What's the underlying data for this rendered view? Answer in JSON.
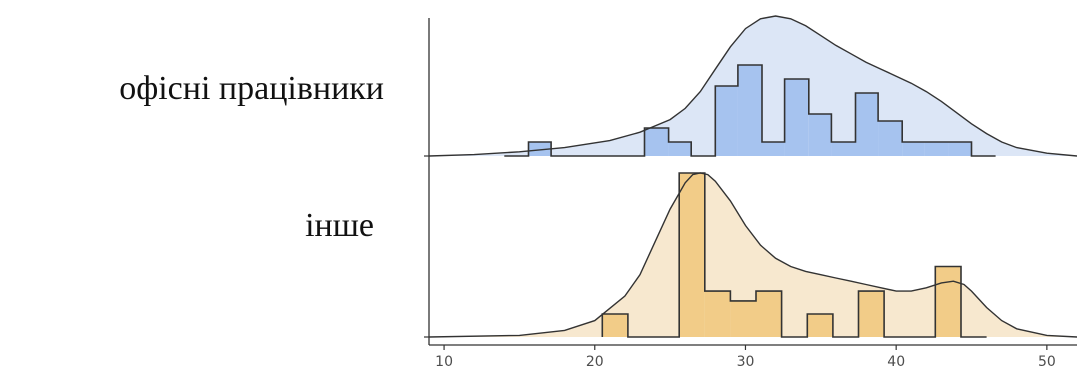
{
  "chart_data": {
    "type": "ridgeline",
    "title": "",
    "xlabel": "",
    "ylabel": "",
    "xlim": [
      9,
      52
    ],
    "x_ticks": [
      10,
      20,
      30,
      40,
      50
    ],
    "grid": false,
    "legend": "none",
    "groups": [
      {
        "name": "офісні працівники",
        "fill_color": "#a6c3ef",
        "density_color": "#dce6f6",
        "line_color": "#333333",
        "density": {
          "x": [
            9,
            12,
            15,
            18,
            21,
            23,
            25,
            26,
            27,
            28,
            29,
            30,
            31,
            32,
            33,
            34,
            35,
            36,
            37,
            38,
            39,
            40,
            41,
            42,
            43,
            44,
            45,
            46,
            47,
            48,
            50,
            52
          ],
          "y": [
            0.0,
            0.01,
            0.03,
            0.06,
            0.11,
            0.17,
            0.26,
            0.34,
            0.46,
            0.62,
            0.78,
            0.91,
            0.98,
            1.0,
            0.98,
            0.93,
            0.86,
            0.79,
            0.73,
            0.67,
            0.62,
            0.57,
            0.52,
            0.46,
            0.39,
            0.31,
            0.23,
            0.16,
            0.1,
            0.06,
            0.02,
            0.0
          ]
        },
        "histogram": {
          "bin_edges": [
            14.0,
            15.6,
            17.1,
            18.7,
            20.2,
            21.8,
            23.3,
            24.9,
            26.4,
            28.0,
            29.5,
            31.1,
            32.6,
            34.2,
            35.7,
            37.3,
            38.8,
            40.4,
            41.9,
            43.5,
            45.0,
            46.6
          ],
          "heights": [
            0,
            0.1,
            0,
            0,
            0,
            0,
            0.2,
            0.1,
            0,
            0.5,
            0.65,
            0.1,
            0.55,
            0.3,
            0.1,
            0.45,
            0.25,
            0.1,
            0.1,
            0.1,
            0
          ]
        }
      },
      {
        "name": "інше",
        "fill_color": "#f2cc88",
        "density_color": "#f7e8cf",
        "line_color": "#333333",
        "density": {
          "x": [
            9,
            15,
            18,
            20,
            22,
            23,
            24,
            25,
            26,
            26.5,
            27,
            27.5,
            28,
            29,
            30,
            31,
            32,
            33,
            34,
            35,
            36,
            37,
            38,
            39,
            40,
            41,
            42,
            43,
            43.8,
            44.5,
            45,
            46,
            47,
            48,
            50,
            52
          ],
          "y": [
            0.0,
            0.01,
            0.04,
            0.1,
            0.25,
            0.38,
            0.58,
            0.78,
            0.94,
            0.99,
            1.0,
            0.99,
            0.95,
            0.83,
            0.68,
            0.56,
            0.48,
            0.43,
            0.4,
            0.38,
            0.36,
            0.34,
            0.32,
            0.3,
            0.28,
            0.28,
            0.3,
            0.33,
            0.34,
            0.32,
            0.28,
            0.18,
            0.1,
            0.05,
            0.01,
            0.0
          ]
        },
        "histogram": {
          "bin_edges": [
            20.5,
            22.2,
            23.9,
            25.6,
            27.3,
            29.0,
            30.7,
            32.4,
            34.1,
            35.8,
            37.5,
            39.2,
            40.9,
            42.6,
            44.3,
            46.0
          ],
          "heights": [
            0.14,
            0,
            0,
            1.0,
            0.28,
            0.22,
            0.28,
            0,
            0.14,
            0,
            0.28,
            0,
            0,
            0.43,
            0
          ]
        }
      }
    ]
  }
}
